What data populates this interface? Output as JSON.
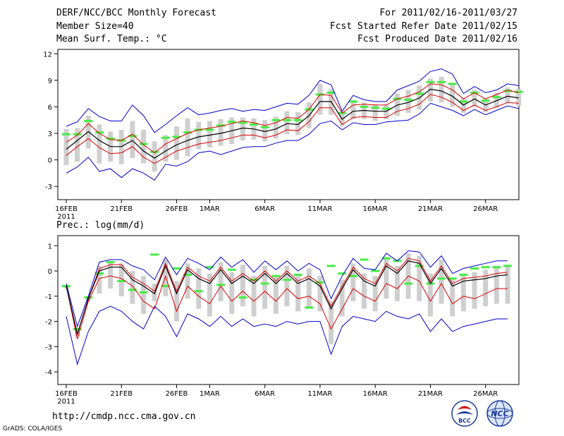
{
  "header": {
    "title": "DERF/NCC/BCC Monthly Forecast",
    "member": "Member Size=40",
    "variable": "Mean Surf. Temp.: °C",
    "period": "For 2011/02/16-2011/03/27",
    "started": "Fcst Started Refer Date 2011/02/15",
    "produced": "Fcst Produced Date 2011/02/16"
  },
  "footer": {
    "url": "http://cmdp.ncc.cma.gov.cn",
    "grads": "GrADS: COLA/IGES",
    "logo_bcc": "BCC",
    "logo_ncc": "NCC"
  },
  "colors": {
    "box": "#cfcfcf",
    "obs": "#44ee44",
    "mean": "#000000",
    "spread": "#dd0000",
    "extreme": "#0000cc"
  },
  "chart_data": [
    {
      "type": "line",
      "title": "Mean Surf. Temp.: °C",
      "x_tick_labels": [
        "16FEB",
        "21FEB",
        "26FEB",
        "1MAR",
        "6MAR",
        "11MAR",
        "16MAR",
        "21MAR",
        "26MAR"
      ],
      "x_tick_days": [
        1,
        6,
        11,
        14,
        19,
        24,
        29,
        34,
        39
      ],
      "year_label": "2011",
      "days": 40,
      "ylim": [
        -4.5,
        12.5
      ],
      "yticks": [
        -3,
        0,
        3,
        6,
        9,
        12
      ],
      "series": [
        {
          "name": "ensemble mean",
          "values": [
            1.2,
            2.2,
            3.2,
            2.2,
            1.5,
            1.5,
            2.2,
            1.0,
            0.2,
            1.0,
            1.7,
            2.2,
            2.6,
            2.8,
            3.0,
            3.3,
            3.6,
            3.5,
            3.2,
            3.5,
            4.1,
            4.0,
            5.0,
            6.6,
            6.6,
            4.6,
            5.5,
            5.6,
            5.5,
            5.5,
            6.2,
            6.5,
            7.0,
            8.0,
            7.8,
            7.2,
            6.2,
            6.9,
            6.2,
            6.7,
            7.2,
            7.0
          ]
        },
        {
          "name": "upper spread",
          "values": [
            2.0,
            2.8,
            4.1,
            3.0,
            2.3,
            2.2,
            2.9,
            1.7,
            0.8,
            1.8,
            2.4,
            3.0,
            3.4,
            3.6,
            3.8,
            4.1,
            4.4,
            4.2,
            3.9,
            4.2,
            4.8,
            4.7,
            5.7,
            7.4,
            7.3,
            5.3,
            6.2,
            6.3,
            6.2,
            6.2,
            6.9,
            7.2,
            7.7,
            8.6,
            8.5,
            7.9,
            6.9,
            7.6,
            6.9,
            7.4,
            7.9,
            7.6
          ]
        },
        {
          "name": "lower spread",
          "values": [
            0.5,
            1.5,
            2.4,
            1.4,
            0.7,
            0.8,
            1.5,
            0.3,
            -0.4,
            0.3,
            1.0,
            1.4,
            1.8,
            2.0,
            2.2,
            2.5,
            2.8,
            2.8,
            2.5,
            2.8,
            3.4,
            3.3,
            4.3,
            5.9,
            5.9,
            4.0,
            4.8,
            4.9,
            4.8,
            4.8,
            5.5,
            5.8,
            6.3,
            7.4,
            7.1,
            6.5,
            5.6,
            6.2,
            5.6,
            6.0,
            6.5,
            6.4
          ]
        },
        {
          "name": "maximum",
          "values": [
            3.8,
            4.3,
            5.8,
            4.9,
            4.4,
            4.4,
            6.2,
            5.0,
            3.1,
            4.0,
            5.0,
            5.9,
            5.1,
            5.3,
            5.6,
            5.8,
            5.5,
            5.7,
            5.6,
            6.0,
            6.4,
            6.3,
            7.3,
            9.0,
            8.5,
            5.5,
            7.3,
            6.8,
            6.6,
            6.6,
            7.9,
            8.4,
            8.9,
            10.0,
            10.3,
            9.7,
            7.5,
            8.3,
            7.6,
            7.9,
            8.6,
            8.4
          ]
        },
        {
          "name": "minimum",
          "values": [
            -1.5,
            -0.8,
            0.3,
            -1.3,
            -1.0,
            -2.0,
            -1.0,
            -1.5,
            -2.3,
            -0.5,
            -0.7,
            -0.2,
            0.8,
            1.0,
            0.6,
            1.0,
            1.4,
            1.5,
            1.5,
            1.9,
            2.2,
            2.2,
            2.9,
            4.1,
            4.4,
            3.4,
            4.2,
            4.0,
            4.0,
            4.3,
            4.4,
            4.5,
            5.2,
            6.4,
            6.0,
            5.6,
            5.0,
            5.7,
            5.1,
            5.6,
            6.1,
            5.8
          ]
        },
        {
          "name": "observed",
          "values": [
            2.9,
            2.9,
            4.4,
            3.1,
            2.4,
            2.2,
            2.7,
            1.8,
            0.9,
            2.5,
            2.6,
            3.1,
            3.4,
            3.4,
            3.9,
            4.3,
            4.2,
            4.0,
            3.7,
            4.5,
            4.5,
            4.5,
            5.7,
            7.4,
            7.6,
            5.3,
            6.6,
            6.0,
            5.9,
            5.8,
            6.9,
            6.8,
            7.5,
            8.8,
            8.8,
            8.6,
            6.6,
            7.6,
            6.7,
            7.1,
            7.8,
            7.7
          ]
        },
        {
          "name": "box top",
          "values": [
            3.5,
            3.6,
            5.0,
            4.0,
            3.2,
            3.4,
            4.4,
            3.4,
            2.1,
            2.8,
            3.8,
            4.7,
            4.3,
            4.4,
            4.6,
            4.8,
            4.8,
            4.7,
            4.5,
            4.9,
            5.5,
            5.4,
            6.5,
            8.6,
            8.0,
            5.3,
            6.8,
            6.5,
            6.3,
            6.3,
            7.5,
            7.9,
            8.4,
            9.2,
            9.4,
            8.7,
            7.0,
            7.9,
            7.0,
            7.6,
            8.2,
            8.0
          ]
        },
        {
          "name": "box bottom",
          "values": [
            -0.6,
            -0.2,
            1.3,
            -0.4,
            -0.2,
            -0.5,
            0.2,
            -0.4,
            -1.3,
            -0.2,
            0.0,
            0.4,
            1.2,
            1.4,
            1.6,
            1.8,
            2.2,
            2.3,
            2.1,
            2.4,
            2.9,
            2.8,
            3.6,
            5.1,
            5.1,
            3.8,
            4.6,
            4.6,
            4.4,
            4.6,
            5.0,
            5.3,
            5.7,
            6.6,
            6.5,
            6.0,
            5.3,
            6.0,
            5.4,
            5.9,
            6.4,
            6.1
          ]
        }
      ]
    },
    {
      "type": "line",
      "title": "Prec.: log(mm/d)",
      "x_tick_labels": [
        "16FEB",
        "21FEB",
        "26FEB",
        "1MAR",
        "6MAR",
        "11MAR",
        "16MAR",
        "21MAR",
        "26MAR"
      ],
      "x_tick_days": [
        1,
        6,
        11,
        14,
        19,
        24,
        29,
        34,
        39
      ],
      "year_label": "2011",
      "days": 40,
      "ylim": [
        -4.5,
        1.4
      ],
      "yticks": [
        -4,
        -3,
        -2,
        -1,
        0,
        1
      ],
      "series": [
        {
          "name": "ensemble mean",
          "values": [
            -0.6,
            -2.5,
            -1.1,
            0.0,
            0.15,
            0.15,
            -0.35,
            -0.6,
            -0.9,
            0.2,
            -0.9,
            0.05,
            -0.3,
            -0.5,
            0.05,
            -0.5,
            -0.2,
            -0.5,
            -0.1,
            -0.5,
            -0.1,
            -0.5,
            -0.3,
            -0.6,
            -1.5,
            -0.7,
            0.05,
            -0.4,
            -0.6,
            0.2,
            -0.1,
            0.4,
            0.3,
            -0.5,
            0.1,
            -0.6,
            -0.4,
            -0.35,
            -0.3,
            -0.2,
            -0.15
          ]
        },
        {
          "name": "upper spread",
          "values": [
            -0.6,
            -2.5,
            -1.1,
            0.1,
            0.25,
            0.25,
            -0.25,
            -0.5,
            -0.8,
            0.3,
            -0.8,
            0.15,
            -0.2,
            -0.4,
            0.15,
            -0.4,
            -0.1,
            -0.4,
            0.0,
            -0.4,
            0.0,
            -0.4,
            -0.2,
            -0.5,
            -1.4,
            -0.6,
            0.15,
            -0.3,
            -0.5,
            0.3,
            0.0,
            0.5,
            0.4,
            -0.4,
            0.2,
            -0.5,
            -0.3,
            -0.25,
            -0.2,
            -0.1,
            -0.05
          ]
        },
        {
          "name": "lower spread",
          "values": [
            -0.6,
            -2.7,
            -1.2,
            -0.3,
            -0.2,
            -0.3,
            -0.6,
            -1.2,
            -1.5,
            -0.2,
            -1.6,
            -0.6,
            -1.0,
            -1.3,
            -0.6,
            -1.2,
            -0.8,
            -1.2,
            -0.8,
            -1.2,
            -0.7,
            -1.1,
            -1.0,
            -1.3,
            -2.3,
            -1.5,
            -0.7,
            -1.0,
            -1.2,
            -0.5,
            -0.7,
            -0.2,
            -0.4,
            -1.2,
            -0.5,
            -1.3,
            -1.0,
            -1.1,
            -0.9,
            -0.7,
            -0.7
          ]
        },
        {
          "name": "maximum",
          "values": [
            -0.5,
            -2.2,
            -1.0,
            0.35,
            0.45,
            0.45,
            0.2,
            0.05,
            -0.35,
            0.55,
            -0.15,
            0.5,
            0.3,
            0.05,
            0.55,
            0.15,
            0.45,
            -0.05,
            0.4,
            0.05,
            0.4,
            0.0,
            0.3,
            0.05,
            -1.1,
            -0.2,
            0.5,
            0.1,
            0.05,
            0.7,
            0.4,
            0.8,
            0.75,
            0.15,
            0.6,
            -0.1,
            0.1,
            0.2,
            0.3,
            0.4,
            0.4
          ]
        },
        {
          "name": "minimum",
          "values": [
            -1.8,
            -3.7,
            -2.4,
            -1.6,
            -1.4,
            -1.6,
            -2.0,
            -2.3,
            -1.4,
            -1.8,
            -2.6,
            -1.7,
            -1.9,
            -2.2,
            -1.8,
            -2.2,
            -1.9,
            -2.2,
            -2.1,
            -2.2,
            -2.0,
            -2.1,
            -2.0,
            -2.0,
            -3.3,
            -2.2,
            -1.8,
            -1.9,
            -2.0,
            -1.6,
            -1.8,
            -1.9,
            -1.7,
            -2.4,
            -1.9,
            -2.4,
            -2.2,
            -2.1,
            -2.0,
            -1.9,
            -1.9
          ]
        },
        {
          "name": "observed",
          "values": [
            -0.6,
            -2.3,
            -1.05,
            -0.1,
            0.35,
            -0.4,
            -0.75,
            -0.85,
            0.65,
            -0.6,
            0.1,
            -0.15,
            -0.8,
            0.15,
            -0.55,
            0.05,
            -1.05,
            -0.35,
            -0.5,
            -0.2,
            -0.35,
            -0.15,
            -1.45,
            -0.45,
            0.2,
            -0.1,
            -0.2,
            0.45,
            0.0,
            0.5,
            0.4,
            -0.5,
            0.2,
            -0.5,
            -0.3,
            -0.3,
            -0.15,
            0.1,
            0.15,
            0.15,
            0.2
          ]
        },
        {
          "name": "box top",
          "values": [
            -0.55,
            -2.3,
            -1.0,
            0.2,
            0.35,
            0.3,
            0.0,
            -0.2,
            -0.5,
            0.45,
            -0.4,
            0.3,
            0.1,
            -0.1,
            0.35,
            -0.05,
            0.25,
            -0.2,
            0.2,
            -0.2,
            0.2,
            -0.15,
            0.1,
            -0.2,
            -1.2,
            -0.35,
            0.3,
            -0.1,
            -0.2,
            0.55,
            0.2,
            0.7,
            0.6,
            -0.1,
            0.45,
            -0.3,
            -0.1,
            -0.05,
            0.05,
            0.2,
            0.25
          ]
        },
        {
          "name": "box bottom",
          "values": [
            -0.7,
            -2.6,
            -1.2,
            -0.9,
            -0.7,
            -1.0,
            -1.3,
            -1.7,
            -1.2,
            -1.0,
            -2.0,
            -1.1,
            -1.5,
            -1.8,
            -1.2,
            -1.7,
            -1.4,
            -1.8,
            -1.5,
            -1.7,
            -1.4,
            -1.6,
            -1.5,
            -1.6,
            -2.9,
            -1.8,
            -1.2,
            -1.5,
            -1.6,
            -1.1,
            -1.2,
            -1.1,
            -1.2,
            -1.8,
            -1.3,
            -1.8,
            -1.6,
            -1.5,
            -1.4,
            -1.3,
            -1.3
          ]
        }
      ]
    }
  ]
}
